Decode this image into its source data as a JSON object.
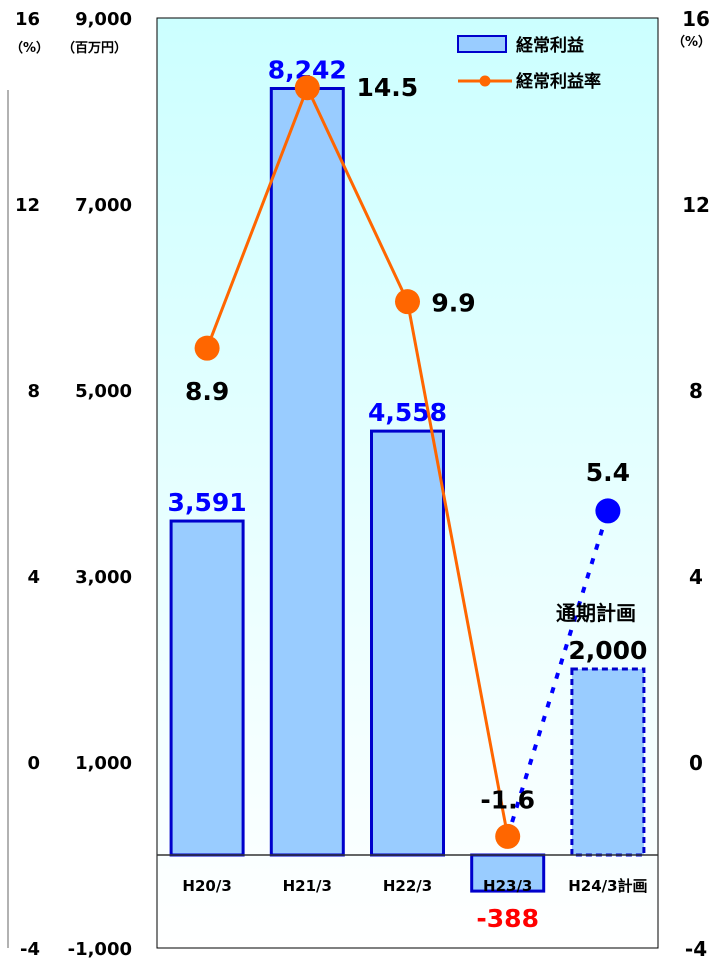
{
  "chart_data": {
    "type": "bar",
    "categories": [
      "H20/3",
      "H21/3",
      "H22/3",
      "H23/3",
      "H24/3計画"
    ],
    "series": [
      {
        "name": "経常利益",
        "axis": "left",
        "type": "bar",
        "values": [
          3591,
          8242,
          4558,
          -388,
          2000
        ],
        "labels": [
          "3,591",
          "8,242",
          "4,558",
          "-388",
          "2,000"
        ],
        "color": "#99ccff",
        "border_color": "#0000cc",
        "label_colors": [
          "#0000ff",
          "#0000ff",
          "#0000ff",
          "#ff0000",
          "#000000"
        ],
        "dashed": [
          false,
          false,
          false,
          false,
          true
        ]
      },
      {
        "name": "経常利益率",
        "axis": "right",
        "type": "line",
        "values": [
          8.9,
          14.5,
          9.9,
          -1.6,
          5.4
        ],
        "labels": [
          "8.9",
          "14.5",
          "9.9",
          "-1.6",
          "5.4"
        ],
        "color": "#ff6600",
        "forecast_color": "#0000ff"
      }
    ],
    "y_left": {
      "unit": "（百万円）",
      "ticks": [
        -1000,
        1000,
        3000,
        5000,
        7000,
        9000
      ],
      "tick_labels": [
        "-1,000",
        "1,000",
        "3,000",
        "5,000",
        "7,000",
        "9,000"
      ],
      "ylim": [
        -1000,
        9000
      ]
    },
    "y_right": {
      "unit": "（%）",
      "ticks": [
        -4,
        0,
        4,
        8,
        12,
        16
      ],
      "tick_labels": [
        "-4",
        "0",
        "4",
        "8",
        "12",
        "16"
      ],
      "ylim": [
        -4,
        16
      ]
    },
    "y_far_left": {
      "unit": "（%）",
      "tick_labels": [
        "-4",
        "0",
        "4",
        "8",
        "12",
        "16"
      ]
    },
    "annotation": "通期計画",
    "legend": {
      "placement": "top-right"
    },
    "plot_background": [
      "#ccffff",
      "#ffffff"
    ]
  }
}
